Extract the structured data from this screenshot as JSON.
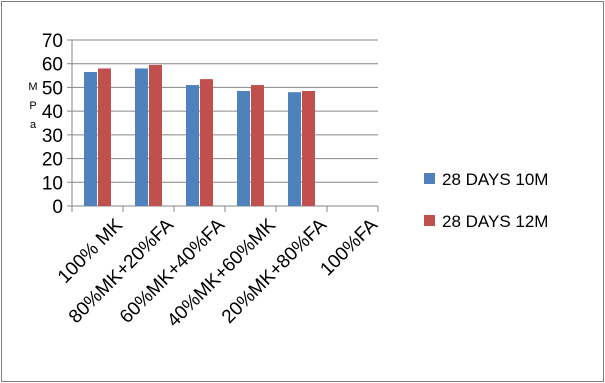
{
  "chart_data": {
    "type": "bar",
    "title": "",
    "xlabel": "",
    "ylabel": "MPa",
    "ylabel_letters": [
      "M",
      "P",
      "a"
    ],
    "ylim": [
      0,
      70
    ],
    "yticks": [
      0,
      10,
      20,
      30,
      40,
      50,
      60,
      70
    ],
    "grid": true,
    "legend_position": "right",
    "categories": [
      "100% MK",
      "80%MK+20%FA",
      "60%MK+40%FA",
      "40%MK+60%MK",
      "20%MK+80%FA",
      "100%FA"
    ],
    "series": [
      {
        "name": "28 DAYS 10M",
        "color": "#4f81bd",
        "values": [
          56.5,
          58,
          51,
          48.5,
          48,
          null
        ]
      },
      {
        "name": "28 DAYS 12M",
        "color": "#c0504d",
        "values": [
          58,
          59.5,
          53.5,
          51,
          48.5,
          null
        ]
      }
    ]
  }
}
